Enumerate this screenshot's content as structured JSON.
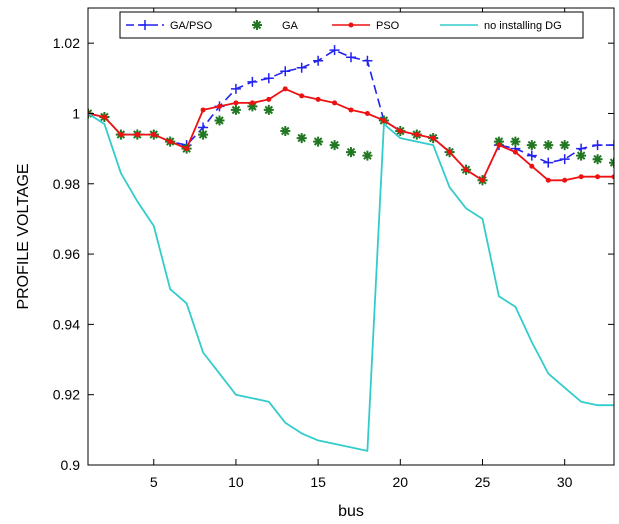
{
  "chart_data": {
    "type": "line",
    "title": "",
    "xlabel": "bus",
    "ylabel": "PROFILE VOLTAGE",
    "xlim": [
      1,
      33
    ],
    "ylim": [
      0.9,
      1.03
    ],
    "xticks": [
      5,
      10,
      15,
      20,
      25,
      30
    ],
    "yticks": [
      0.9,
      0.92,
      0.94,
      0.96,
      0.98,
      1.0,
      1.02
    ],
    "xtick_labels": [
      "5",
      "10",
      "15",
      "20",
      "25",
      "30"
    ],
    "ytick_labels": [
      "0.9",
      "0.92",
      "0.94",
      "0.96",
      "0.98",
      "1",
      "1.02"
    ],
    "grid": false,
    "legend_position": "top",
    "x": [
      1,
      2,
      3,
      4,
      5,
      6,
      7,
      8,
      9,
      10,
      11,
      12,
      13,
      14,
      15,
      16,
      17,
      18,
      19,
      20,
      21,
      22,
      23,
      24,
      25,
      26,
      27,
      28,
      29,
      30,
      31,
      32,
      33
    ],
    "series": [
      {
        "name": "GA/PSO",
        "color": "#2222ee",
        "line": "dashed",
        "marker": "plus",
        "values": [
          1.0,
          0.999,
          0.994,
          0.994,
          0.994,
          0.992,
          0.991,
          0.996,
          1.002,
          1.007,
          1.009,
          1.01,
          1.012,
          1.013,
          1.015,
          1.018,
          1.016,
          1.015,
          0.998,
          0.995,
          0.994,
          0.993,
          0.989,
          0.984,
          0.981,
          0.991,
          0.99,
          0.988,
          0.986,
          0.987,
          0.99,
          0.991,
          0.991
        ]
      },
      {
        "name": "GA",
        "color": "#227722",
        "line": "none",
        "marker": "star",
        "values": [
          1.0,
          0.999,
          0.994,
          0.994,
          0.994,
          0.992,
          0.99,
          0.994,
          0.998,
          1.001,
          1.002,
          1.001,
          0.995,
          0.993,
          0.992,
          0.991,
          0.989,
          0.988,
          0.998,
          0.995,
          0.994,
          0.993,
          0.989,
          0.984,
          0.981,
          0.992,
          0.992,
          0.991,
          0.991,
          0.991,
          0.988,
          0.987,
          0.986
        ]
      },
      {
        "name": "PSO",
        "color": "#ee1111",
        "line": "solid",
        "marker": "dot",
        "values": [
          1.0,
          0.999,
          0.994,
          0.994,
          0.994,
          0.992,
          0.99,
          1.001,
          1.002,
          1.003,
          1.003,
          1.004,
          1.007,
          1.005,
          1.004,
          1.003,
          1.001,
          1.0,
          0.998,
          0.995,
          0.994,
          0.993,
          0.989,
          0.984,
          0.981,
          0.991,
          0.989,
          0.985,
          0.981,
          0.981,
          0.982,
          0.982,
          0.982
        ]
      },
      {
        "name": "no installing DG",
        "color": "#33cccc",
        "line": "solid",
        "marker": "none",
        "values": [
          1.0,
          0.997,
          0.983,
          0.975,
          0.968,
          0.95,
          0.946,
          0.932,
          0.926,
          0.92,
          0.919,
          0.918,
          0.912,
          0.909,
          0.907,
          0.906,
          0.905,
          0.904,
          0.997,
          0.993,
          0.992,
          0.991,
          0.979,
          0.973,
          0.97,
          0.948,
          0.945,
          0.935,
          0.926,
          0.922,
          0.918,
          0.917,
          0.917
        ]
      }
    ]
  }
}
